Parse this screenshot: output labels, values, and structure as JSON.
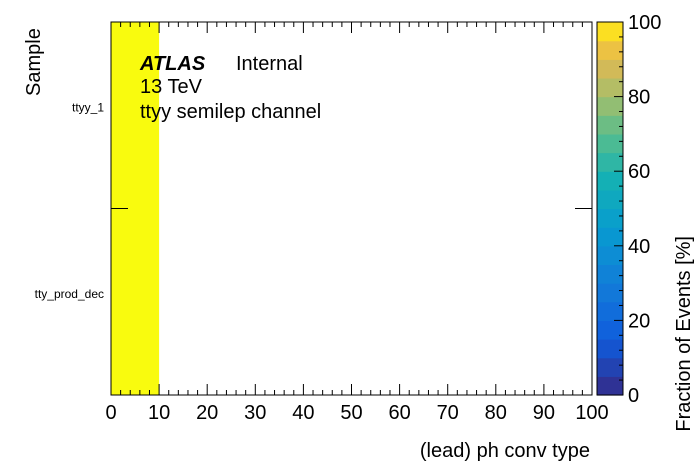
{
  "chart_data": {
    "type": "heatmap",
    "xlabel": "(lead) ph conv type",
    "ylabel": "Sample",
    "xlim": [
      0,
      100
    ],
    "x_ticks": [
      "0",
      "10",
      "20",
      "30",
      "40",
      "50",
      "60",
      "70",
      "80",
      "90",
      "100"
    ],
    "y_categories": [
      "tty_prod_dec",
      "ttyy_1"
    ],
    "x_bins": [
      0,
      10
    ],
    "cells": [
      {
        "x": [
          0,
          10
        ],
        "y": "tty_prod_dec",
        "value": 100
      },
      {
        "x": [
          0,
          10
        ],
        "y": "ttyy_1",
        "value": 100
      }
    ],
    "colorbar": {
      "label": "Fraction of Events [%]",
      "range": [
        0,
        100
      ],
      "ticks": [
        "0",
        "20",
        "40",
        "60",
        "80",
        "100"
      ]
    },
    "annotations": {
      "atlas": "ATLAS",
      "status": "Internal",
      "energy": "13 TeV",
      "channel": "ttyy semilep channel"
    }
  }
}
